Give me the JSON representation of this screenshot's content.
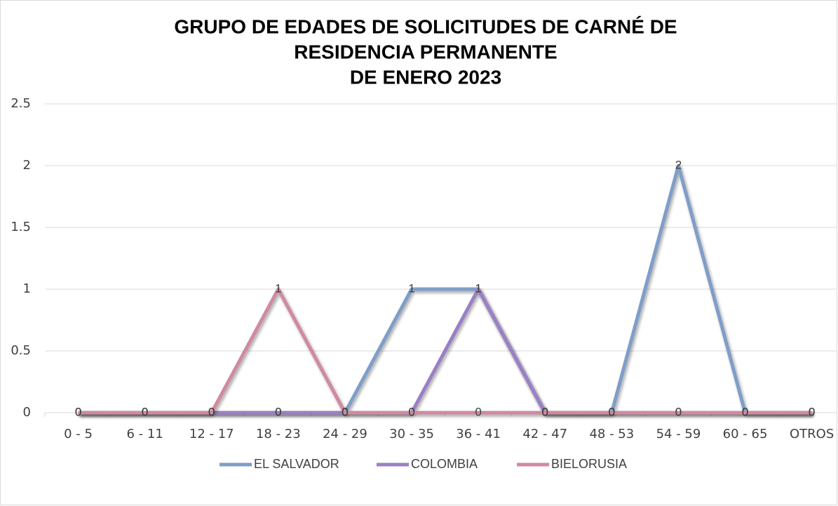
{
  "chart_data": {
    "type": "line",
    "title": [
      "GRUPO DE EDADES DE SOLICITUDES DE CARNÉ DE",
      "RESIDENCIA PERMANENTE",
      "DE ENERO 2023"
    ],
    "categories": [
      "0 - 5",
      "6 - 11",
      "12 - 17",
      "18 - 23",
      "24 - 29",
      "30 - 35",
      "36 - 41",
      "42 - 47",
      "48 - 53",
      "54 - 59",
      "60 - 65",
      "OTROS"
    ],
    "series": [
      {
        "name": "EL SALVADOR",
        "color": "#7f9ec8",
        "values": [
          0,
          0,
          0,
          0,
          0,
          1,
          1,
          0,
          0,
          2,
          0,
          0
        ]
      },
      {
        "name": "COLOMBIA",
        "color": "#9b7fc6",
        "values": [
          0,
          0,
          0,
          0,
          0,
          0,
          1,
          0,
          0,
          0,
          0,
          0
        ]
      },
      {
        "name": "BIELORUSIA",
        "color": "#d08aa0",
        "values": [
          0,
          0,
          0,
          1,
          0,
          0,
          0,
          0,
          0,
          0,
          0,
          0
        ]
      }
    ],
    "ylim": [
      0,
      2.5
    ],
    "yticks": [
      0,
      0.5,
      1,
      1.5,
      2,
      2.5
    ],
    "grid": true,
    "legend": "bottom"
  }
}
